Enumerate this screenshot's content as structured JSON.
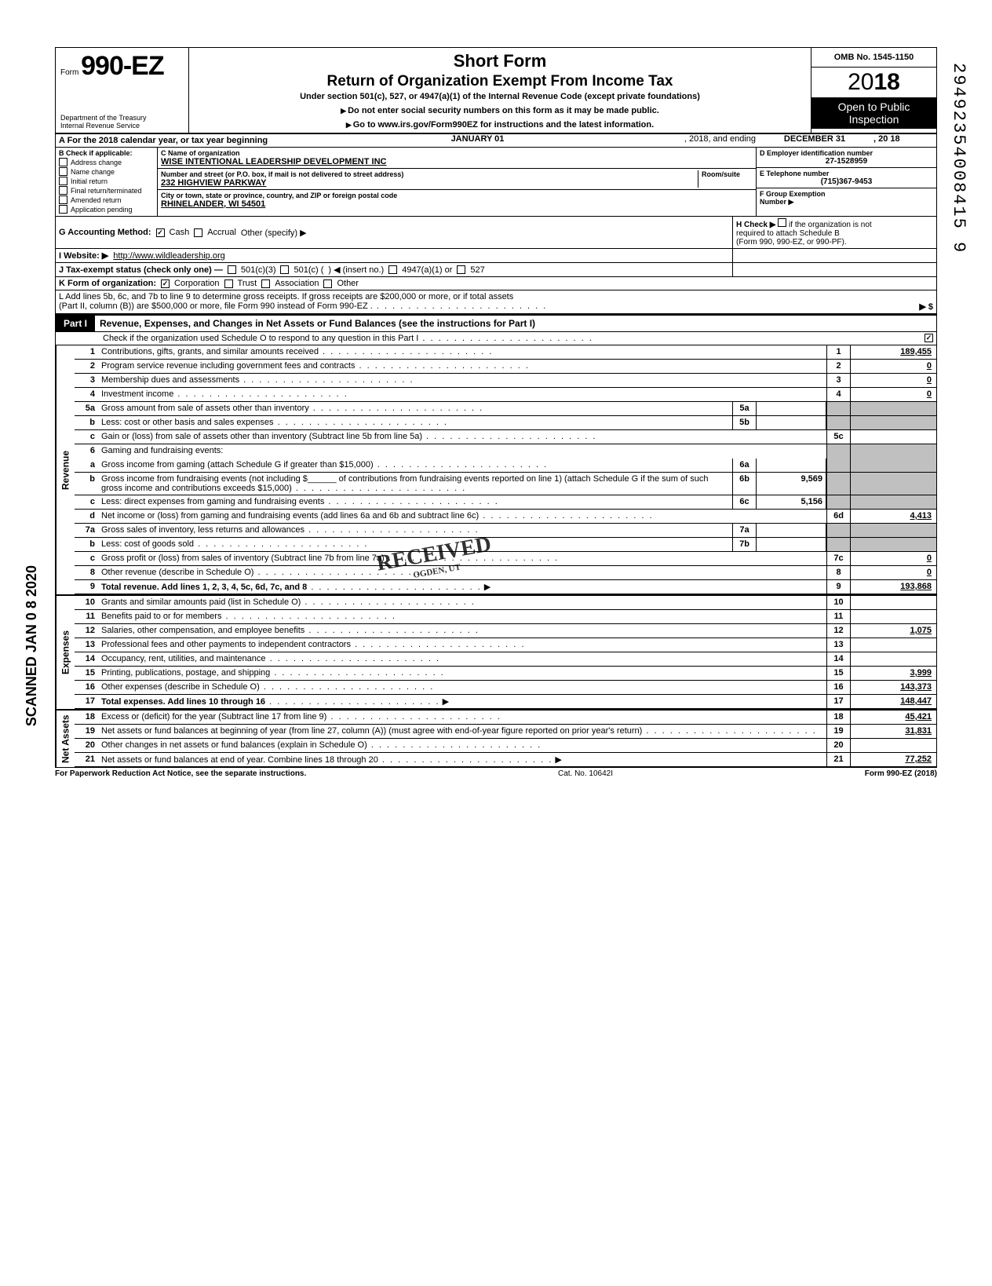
{
  "meta": {
    "omb": "OMB No. 1545-1150",
    "year_prefix": "20",
    "year_bold": "18",
    "open1": "Open to Public",
    "open2": "Inspection",
    "form_label": "Form",
    "form_no": "990-EZ",
    "title": "Short Form",
    "subtitle": "Return of Organization Exempt From Income Tax",
    "under": "Under section 501(c), 527, or 4947(a)(1) of the Internal Revenue Code (except private foundations)",
    "warn": "Do not enter social security numbers on this form as it may be made public.",
    "goto": "Go to www.irs.gov/Form990EZ for instructions and the latest information.",
    "dept1": "Department of the Treasury",
    "dept2": "Internal Revenue Service"
  },
  "rowA": {
    "label": "A  For the 2018 calendar year, or tax year beginning",
    "start": "JANUARY 01",
    "mid": ", 2018, and ending",
    "end": "DECEMBER 31",
    "yr": ", 20   18"
  },
  "B": {
    "hdr": "B  Check if applicable:",
    "items": [
      "Address change",
      "Name change",
      "Initial return",
      "Final return/terminated",
      "Amended return",
      "Application pending"
    ]
  },
  "C": {
    "lbl": "C  Name of organization",
    "name": "WISE INTENTIONAL LEADERSHIP DEVELOPMENT INC",
    "addr_lbl": "Number and street (or P.O. box, if mail is not delivered to street address)",
    "room_lbl": "Room/suite",
    "addr": "232 HIGHVIEW PARKWAY",
    "city_lbl": "City or town, state or province, country, and ZIP or foreign postal code",
    "city": "RHINELANDER, WI 54501"
  },
  "D": {
    "lbl": "D Employer identification number",
    "val": "27-1528959",
    "E_lbl": "E  Telephone number",
    "E_val": "(715)367-9453",
    "F_lbl": "F  Group Exemption",
    "F_lbl2": "Number ▶"
  },
  "G": {
    "lbl": "G  Accounting Method:",
    "cash": "Cash",
    "accrual": "Accrual",
    "other": "Other (specify) ▶"
  },
  "H": {
    "lbl": "H  Check ▶",
    "txt1": "if the organization is not",
    "txt2": "required to attach Schedule B",
    "txt3": "(Form 990, 990-EZ, or 990-PF)."
  },
  "I": {
    "lbl": "I   Website: ▶",
    "val": "http://www.wildleadership.org"
  },
  "J": {
    "lbl": "J  Tax-exempt status (check only one) —",
    "o1": "501(c)(3)",
    "o2": "501(c) (",
    "o2b": ") ◀ (insert no.)",
    "o3": "4947(a)(1) or",
    "o4": "527"
  },
  "K": {
    "lbl": "K  Form of organization:",
    "corp": "Corporation",
    "trust": "Trust",
    "assoc": "Association",
    "other": "Other"
  },
  "L": {
    "txt": "L  Add lines 5b, 6c, and 7b to line 9 to determine gross receipts. If gross receipts are $200,000 or more, or if total assets",
    "txt2": "(Part II, column (B)) are $500,000 or more, file Form 990 instead of Form 990-EZ .",
    "arrow": "▶   $"
  },
  "part1": {
    "lbl": "Part I",
    "title": "Revenue, Expenses, and Changes in Net Assets or Fund Balances (see the instructions for Part I)",
    "check": "Check if the organization used Schedule O to respond to any question in this Part I",
    "checked": "✓"
  },
  "side": {
    "rev": "Revenue",
    "exp": "Expenses",
    "net": "Net Assets"
  },
  "lines": {
    "1": {
      "d": "Contributions, gifts, grants, and similar amounts received",
      "n": "1",
      "v": "189,455"
    },
    "2": {
      "d": "Program service revenue including government fees and contracts",
      "n": "2",
      "v": "0"
    },
    "3": {
      "d": "Membership dues and assessments",
      "n": "3",
      "v": "0"
    },
    "4": {
      "d": "Investment income",
      "n": "4",
      "v": "0"
    },
    "5a": {
      "d": "Gross amount from sale of assets other than inventory",
      "sn": "5a",
      "sv": ""
    },
    "5b": {
      "d": "Less: cost or other basis and sales expenses",
      "sn": "5b",
      "sv": ""
    },
    "5c": {
      "d": "Gain or (loss) from sale of assets other than inventory (Subtract line 5b from line 5a)",
      "n": "5c",
      "v": ""
    },
    "6": {
      "d": "Gaming and fundraising events:"
    },
    "6a": {
      "d": "Gross income from gaming (attach Schedule G if greater than $15,000)",
      "sn": "6a",
      "sv": ""
    },
    "6b": {
      "d": "Gross income from fundraising events (not including $______ of contributions from fundraising events reported on line 1) (attach Schedule G if the sum of such gross income and contributions exceeds $15,000)",
      "sn": "6b",
      "sv": "9,569"
    },
    "6c": {
      "d": "Less: direct expenses from gaming and fundraising events",
      "sn": "6c",
      "sv": "5,156"
    },
    "6d": {
      "d": "Net income or (loss) from gaming and fundraising events (add lines 6a and 6b and subtract line 6c)",
      "n": "6d",
      "v": "4,413"
    },
    "7a": {
      "d": "Gross sales of inventory, less returns and allowances",
      "sn": "7a",
      "sv": ""
    },
    "7b": {
      "d": "Less: cost of goods sold",
      "sn": "7b",
      "sv": ""
    },
    "7c": {
      "d": "Gross profit or (loss) from sales of inventory (Subtract line 7b from line 7a)",
      "n": "7c",
      "v": "0"
    },
    "8": {
      "d": "Other revenue (describe in Schedule O)",
      "n": "8",
      "v": "0"
    },
    "9": {
      "d": "Total revenue. Add lines 1, 2, 3, 4, 5c, 6d, 7c, and 8",
      "n": "9",
      "v": "193,868"
    },
    "10": {
      "d": "Grants and similar amounts paid (list in Schedule O)",
      "n": "10",
      "v": ""
    },
    "11": {
      "d": "Benefits paid to or for members",
      "n": "11",
      "v": ""
    },
    "12": {
      "d": "Salaries, other compensation, and employee benefits",
      "n": "12",
      "v": "1,075"
    },
    "13": {
      "d": "Professional fees and other payments to independent contractors",
      "n": "13",
      "v": ""
    },
    "14": {
      "d": "Occupancy, rent, utilities, and maintenance",
      "n": "14",
      "v": ""
    },
    "15": {
      "d": "Printing, publications, postage, and shipping",
      "n": "15",
      "v": "3,999"
    },
    "16": {
      "d": "Other expenses (describe in Schedule O)",
      "n": "16",
      "v": "143,373"
    },
    "17": {
      "d": "Total expenses. Add lines 10 through 16",
      "n": "17",
      "v": "148,447"
    },
    "18": {
      "d": "Excess or (deficit) for the year (Subtract line 17 from line 9)",
      "n": "18",
      "v": "45,421"
    },
    "19": {
      "d": "Net assets or fund balances at beginning of year (from line 27, column (A)) (must agree with end-of-year figure reported on prior year's return)",
      "n": "19",
      "v": "31,831"
    },
    "20": {
      "d": "Other changes in net assets or fund balances (explain in Schedule O)",
      "n": "20",
      "v": ""
    },
    "21": {
      "d": "Net assets or fund balances at end of year. Combine lines 18 through 20",
      "n": "21",
      "v": "77,252"
    }
  },
  "footer": {
    "left": "For Paperwork Reduction Act Notice, see the separate instructions.",
    "mid": "Cat. No. 10642I",
    "right": "Form 990-EZ (2018)"
  },
  "stamps": {
    "received": "RECEIVED",
    "scanned": "SCANNED JAN 0 8 2020",
    "dln": "29492354008415 9"
  }
}
